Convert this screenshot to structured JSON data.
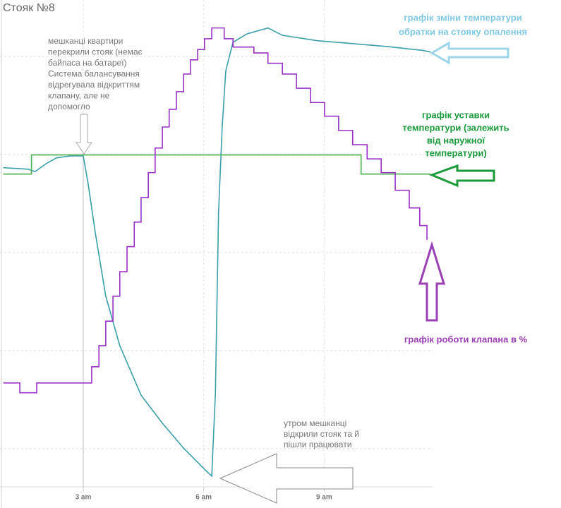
{
  "chart_data": {
    "type": "line",
    "title": "Стояк №8",
    "xlim": [
      1,
      11.7
    ],
    "ylim": [
      12,
      111.5
    ],
    "xticks": [
      {
        "value": 3,
        "label": "3 am"
      },
      {
        "value": 6,
        "label": "6 am"
      },
      {
        "value": 9,
        "label": "9 am"
      }
    ],
    "yticks": [
      20,
      40,
      60,
      80,
      100
    ],
    "grid": true,
    "series": [
      {
        "color": "#3a9fa8",
        "step": false,
        "x": [
          1.01,
          1.63,
          1.8,
          2.07,
          2.33,
          2.68,
          3.0,
          3.12,
          3.3,
          3.56,
          3.91,
          4.44,
          4.97,
          5.5,
          6.02,
          6.2,
          6.29,
          6.37,
          6.46,
          6.55,
          6.73,
          7.08,
          7.6,
          7.96,
          8.83,
          9.71,
          10.59,
          11.47,
          11.65
        ],
        "values": [
          77.3,
          77.0,
          76.5,
          78.1,
          79.3,
          79.7,
          79.7,
          74.1,
          64.0,
          51.1,
          41.0,
          30.9,
          25.2,
          20.1,
          15.8,
          14.4,
          30.9,
          68.3,
          85.6,
          97.1,
          102.9,
          104.6,
          105.8,
          104.3,
          103.2,
          102.6,
          102.0,
          101.2,
          100.9
        ]
      },
      {
        "color": "#4caf50",
        "step": false,
        "x": [
          1.01,
          1.71,
          1.71,
          9.92,
          9.92,
          11.65
        ],
        "values": [
          76.0,
          76.0,
          79.9,
          79.9,
          76.0,
          76.0
        ]
      },
      {
        "color": "#9b30c8",
        "step": true,
        "x": [
          1.01,
          1.42,
          1.84,
          3.07,
          3.21,
          3.39,
          3.56,
          3.74,
          3.91,
          4.09,
          4.27,
          4.44,
          4.62,
          4.79,
          4.97,
          5.14,
          5.32,
          5.5,
          5.67,
          5.85,
          6.02,
          6.2,
          6.51,
          6.73,
          6.99,
          7.25,
          7.6,
          7.96,
          8.31,
          8.66,
          9.01,
          9.36,
          9.71,
          10.07,
          10.42,
          10.77,
          11.12,
          11.38,
          11.56
        ],
        "values": [
          33.4,
          31.4,
          33.4,
          33.4,
          36.7,
          41.0,
          46.0,
          51.1,
          56.1,
          61.2,
          66.2,
          71.2,
          76.3,
          81.3,
          85.6,
          89.2,
          92.8,
          96.4,
          99.3,
          101.4,
          103.6,
          105.8,
          103.6,
          101.9,
          101.9,
          100.7,
          98.6,
          96.4,
          93.5,
          90.6,
          87.8,
          84.9,
          82.0,
          79.1,
          76.3,
          72.7,
          69.1,
          65.5,
          62.6
        ]
      }
    ],
    "annotations": [
      {
        "lines": [
          "мешканці квартири",
          "перекрили стояк (немає",
          "байпаса на батареї)",
          "Система балансування",
          "відрегувала відкриттям",
          "клапану, але не",
          "допомогло"
        ]
      },
      {
        "lines": [
          "утром мешканці",
          "відкрили стояк та й",
          "пішли працювати"
        ]
      },
      {
        "lines": [
          "графік зміни температури",
          "обратки на стояку опалення"
        ]
      },
      {
        "lines": [
          "графік уставки",
          "температури (залежить",
          "від наружної",
          "температури)"
        ]
      },
      {
        "lines": [
          "графік роботи клапана в %"
        ]
      }
    ]
  }
}
